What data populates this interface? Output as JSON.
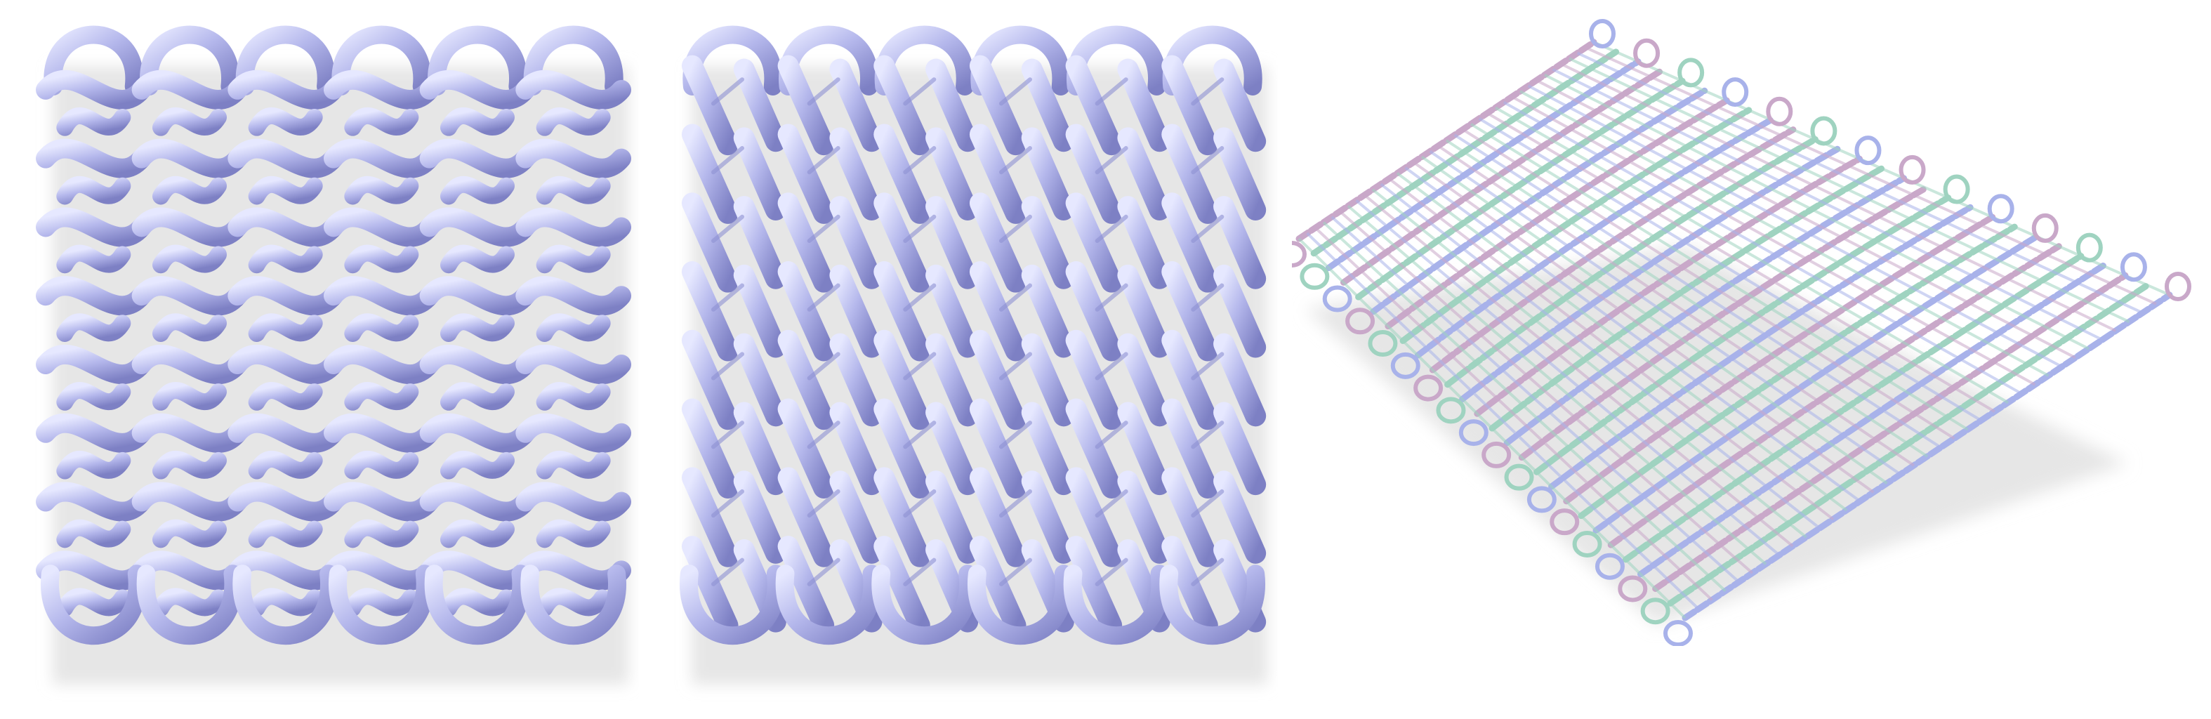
{
  "figure": {
    "panels": [
      {
        "id": "reverse",
        "description_name": "reverse-stockinette-swatch",
        "stitch_type": "reverse-stockinette",
        "columns": 6,
        "rows": 8,
        "yarn_color": "#b5b8ec"
      },
      {
        "id": "face",
        "description_name": "stockinette-swatch",
        "stitch_type": "stockinette",
        "columns": 6,
        "rows": 8,
        "yarn_color": "#b5b8ec"
      },
      {
        "id": "drape",
        "description_name": "draped-knit-fabric",
        "stitch_type": "stockinette-draped",
        "ply_colors": [
          "#c9a8c9",
          "#9fd3c0",
          "#a8b2ea"
        ]
      }
    ],
    "shadow_color": "#e6e6e6",
    "background": "#ffffff"
  }
}
